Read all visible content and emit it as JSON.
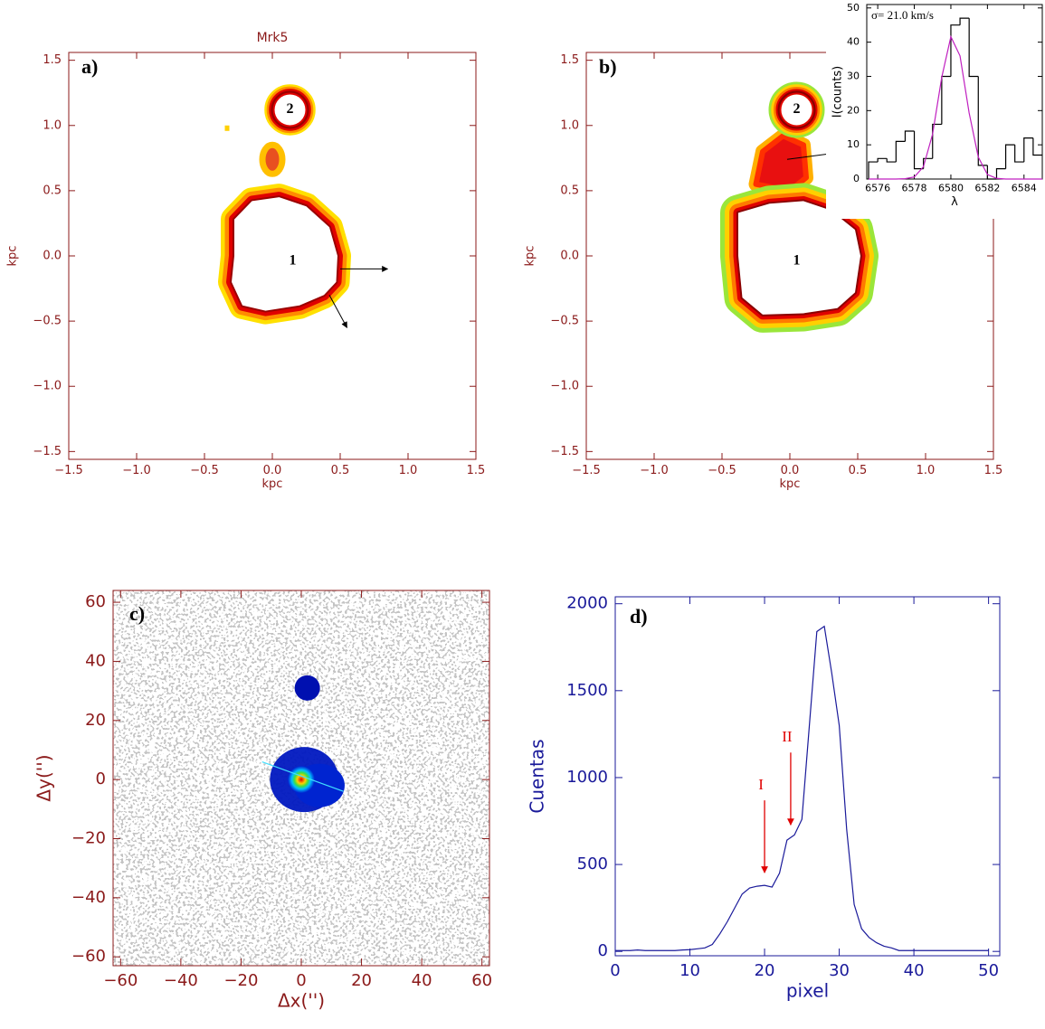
{
  "chart_data": [
    {
      "type": "map",
      "title": "Mrk5",
      "panel_label": "a)",
      "xlabel": "kpc",
      "ylabel": "kpc",
      "xlim": [
        -1.5,
        1.5
      ],
      "ylim": [
        -1.56,
        1.56
      ],
      "xticks": [
        {
          "value": -1.5,
          "label": "−1.5"
        },
        {
          "value": -1.0,
          "label": "−1.0"
        },
        {
          "value": -0.5,
          "label": "−0.5"
        },
        {
          "value": 0,
          "label": "0.0"
        },
        0.5,
        {
          "value": 1.0,
          "label": "1.0"
        },
        1.5
      ],
      "yticks": [
        {
          "value": -1.5,
          "label": "−1.5"
        },
        {
          "value": -1.0,
          "label": "−1.0"
        },
        {
          "value": -0.5,
          "label": "−0.5"
        },
        {
          "value": 0,
          "label": "0.0"
        },
        0.5,
        {
          "value": 1.0,
          "label": "1.0"
        },
        1.5
      ],
      "annotations": [
        "1",
        "2"
      ]
    },
    {
      "type": "map",
      "panel_label": "b)",
      "xlabel": "kpc",
      "ylabel": "kpc",
      "xlim": [
        -1.5,
        1.5
      ],
      "ylim": [
        -1.56,
        1.56
      ],
      "xticks": [
        {
          "value": -1.5,
          "label": "−1.5"
        },
        {
          "value": -1.0,
          "label": "−1.0"
        },
        {
          "value": -0.5,
          "label": "−0.5"
        },
        {
          "value": 0,
          "label": "0.0"
        },
        0.5,
        {
          "value": 1.0,
          "label": "1.0"
        },
        1.5
      ],
      "yticks": [
        {
          "value": -1.5,
          "label": "−1.5"
        },
        {
          "value": -1.0,
          "label": "−1.0"
        },
        {
          "value": -0.5,
          "label": "−0.5"
        },
        {
          "value": 0,
          "label": "0.0"
        },
        0.5,
        {
          "value": 1.0,
          "label": "1.0"
        },
        1.5
      ],
      "annotations": [
        "1",
        "2"
      ],
      "inset": {
        "type": "histogram",
        "text": "σ= 21.0 km/s",
        "xlabel": "λ",
        "ylabel": "I(counts)",
        "color": "#000000",
        "bins": [
          6575.5,
          6576,
          6576.5,
          6577,
          6577.5,
          6578,
          6578.5,
          6579,
          6579.5,
          6580,
          6580.5,
          6581,
          6581.5,
          6582,
          6582.5,
          6583,
          6583.5,
          6584,
          6584.5,
          6585
        ],
        "counts": [
          5,
          6,
          5,
          11,
          14,
          3,
          6,
          16,
          30,
          45,
          47,
          30,
          4,
          0,
          3,
          10,
          5,
          12,
          7
        ],
        "fit": {
          "color": "#c020c0",
          "x": [
            6575.5,
            6576,
            6576.5,
            6577,
            6577.5,
            6578,
            6578.5,
            6579,
            6579.5,
            6580,
            6580.5,
            6581,
            6581.5,
            6582,
            6582.5,
            6583,
            6583.5,
            6584,
            6584.5,
            6585
          ],
          "values": [
            0,
            0,
            0,
            0,
            0.1,
            0.6,
            3.6,
            13.1,
            29.7,
            41.6,
            36,
            19.3,
            6.4,
            1.3,
            0.2,
            0,
            0,
            0,
            0,
            0
          ]
        },
        "xlim": [
          6575.4,
          6585
        ],
        "ylim": [
          0,
          51
        ],
        "xticks": [
          6576,
          6578,
          6580,
          6582,
          6584
        ],
        "yticks": [
          0,
          10,
          20,
          30,
          40,
          50
        ]
      }
    },
    {
      "type": "image",
      "panel_label": "c)",
      "xlabel": "Δx('')",
      "ylabel": "Δy('')",
      "xlim": [
        -62.5,
        62.5
      ],
      "ylim": [
        -63,
        64
      ],
      "xticks": [
        {
          "value": -60,
          "label": "−60"
        },
        {
          "value": -40,
          "label": "−40"
        },
        {
          "value": -20,
          "label": "−20"
        },
        0,
        20,
        40,
        60
      ],
      "yticks": [
        {
          "value": -60,
          "label": "−60"
        },
        {
          "value": -40,
          "label": "−40"
        },
        {
          "value": -20,
          "label": "−20"
        },
        0,
        20,
        40,
        60
      ]
    },
    {
      "type": "line",
      "panel_label": "d)",
      "xlabel": "pixel",
      "ylabel": "Cuentas",
      "color": "#1a1a9a",
      "x": [
        0,
        1,
        2,
        3,
        4,
        5,
        6,
        7,
        8,
        9,
        10,
        11,
        12,
        13,
        14,
        15,
        16,
        17,
        18,
        19,
        20,
        21,
        22,
        23,
        24,
        25,
        26,
        27,
        28,
        29,
        30,
        31,
        32,
        33,
        34,
        35,
        36,
        37,
        38,
        39,
        40,
        41,
        42,
        43,
        44,
        45,
        46,
        47,
        48,
        49,
        50
      ],
      "values": [
        5,
        5,
        5,
        8,
        5,
        5,
        5,
        5,
        5,
        8,
        10,
        15,
        20,
        40,
        100,
        170,
        250,
        330,
        365,
        375,
        380,
        370,
        450,
        640,
        670,
        760,
        1300,
        1840,
        1870,
        1600,
        1300,
        700,
        270,
        130,
        80,
        50,
        30,
        20,
        5,
        5,
        5,
        5,
        5,
        5,
        5,
        5,
        5,
        5,
        5,
        5,
        5
      ],
      "xlim": [
        0,
        51.5
      ],
      "ylim": [
        -25,
        2040
      ],
      "xticks": [
        0,
        10,
        20,
        30,
        40,
        50
      ],
      "yticks": [
        0,
        500,
        1000,
        1500,
        2000
      ],
      "annotations": [
        {
          "text": "I",
          "x": 20
        },
        {
          "text": "II",
          "x": 23.5
        }
      ]
    }
  ]
}
